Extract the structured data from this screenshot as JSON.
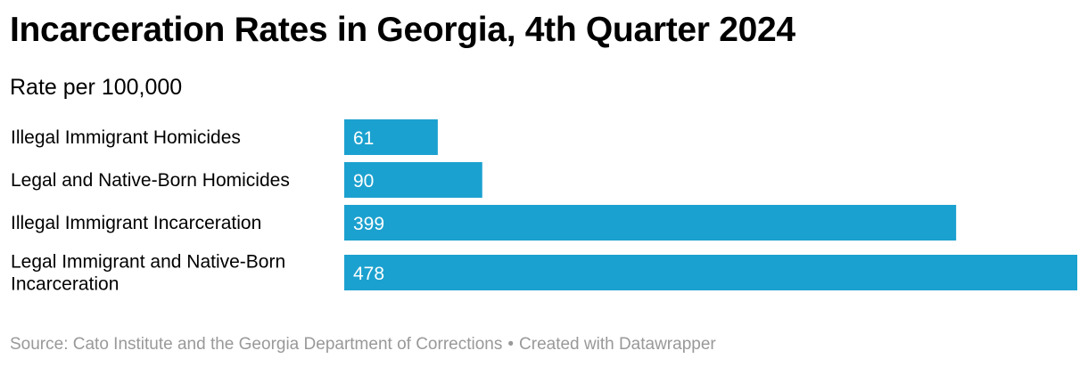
{
  "colors": {
    "bar": "#1ba1cf",
    "bar_label": "#ffffff",
    "text": "#000000",
    "footer": "#999999"
  },
  "chart_data": {
    "type": "bar",
    "orientation": "horizontal",
    "title": "Incarceration Rates in Georgia, 4th Quarter 2024",
    "subtitle": "Rate per 100,000",
    "categories": [
      [
        "Illegal Immigrant Homicides"
      ],
      [
        "Legal and Native-Born Homicides"
      ],
      [
        "Illegal Immigrant Incarceration"
      ],
      [
        "Legal Immigrant and Native-Born",
        "Incarceration"
      ]
    ],
    "values": [
      61,
      90,
      399,
      478
    ],
    "data_labels": [
      "61",
      "90",
      "399",
      "478"
    ],
    "xlim": [
      0,
      478
    ],
    "grid": false,
    "legend": "none"
  },
  "footer": {
    "source": "Source: Cato Institute and the Georgia Department of Corrections",
    "separator": "•",
    "credit": "Created with Datawrapper"
  }
}
